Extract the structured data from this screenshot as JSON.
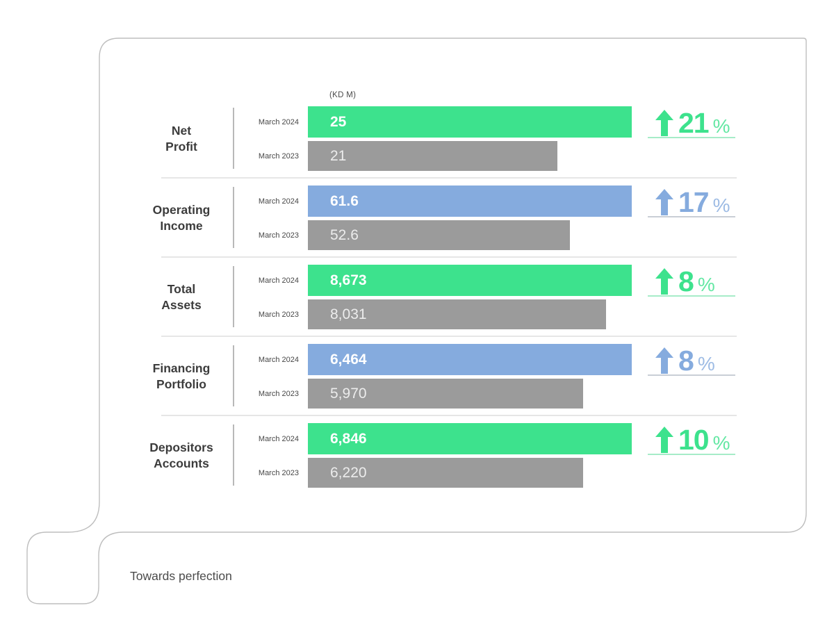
{
  "unit_label": "(KD M)",
  "footer": {
    "tagline": "Towards perfection"
  },
  "colors": {
    "green": "#3DE28D",
    "blue": "#85ABDE",
    "gray_bar": "#9B9B9B",
    "green_underline": "#A6ECC8",
    "blue_underline": "#C9CED6",
    "outline": "#BEBEBE"
  },
  "chart_data": {
    "type": "bar",
    "orientation": "horizontal",
    "title": "(KD M)",
    "series_labels": [
      "March 2024",
      "March 2023"
    ],
    "legend_position": "per-row-left",
    "grid": false,
    "rows": [
      {
        "category": "Net Profit",
        "category_lines": [
          "Net",
          "Profit"
        ],
        "value_2024": "25",
        "value_2023": "21",
        "change_pct": "21",
        "pct_sign": "%",
        "accent": "green",
        "bar_2024_pct": 100,
        "bar_2023_pct": 77
      },
      {
        "category": "Operating Income",
        "category_lines": [
          "Operating",
          "Income"
        ],
        "value_2024": "61.6",
        "value_2023": "52.6",
        "change_pct": "17",
        "pct_sign": "%",
        "accent": "blue",
        "bar_2024_pct": 100,
        "bar_2023_pct": 81
      },
      {
        "category": "Total Assets",
        "category_lines": [
          "Total",
          "Assets"
        ],
        "value_2024": "8,673",
        "value_2023": "8,031",
        "change_pct": "8",
        "pct_sign": "%",
        "accent": "green",
        "bar_2024_pct": 100,
        "bar_2023_pct": 92
      },
      {
        "category": "Financing Portfolio",
        "category_lines": [
          "Financing",
          "Portfolio"
        ],
        "value_2024": "6,464",
        "value_2023": "5,970",
        "change_pct": "8",
        "pct_sign": "%",
        "accent": "blue",
        "bar_2024_pct": 100,
        "bar_2023_pct": 85
      },
      {
        "category": "Depositors Accounts",
        "category_lines": [
          "Depositors",
          "Accounts"
        ],
        "value_2024": "6,846",
        "value_2023": "6,220",
        "change_pct": "10",
        "pct_sign": "%",
        "accent": "green",
        "bar_2024_pct": 100,
        "bar_2023_pct": 85
      }
    ]
  }
}
